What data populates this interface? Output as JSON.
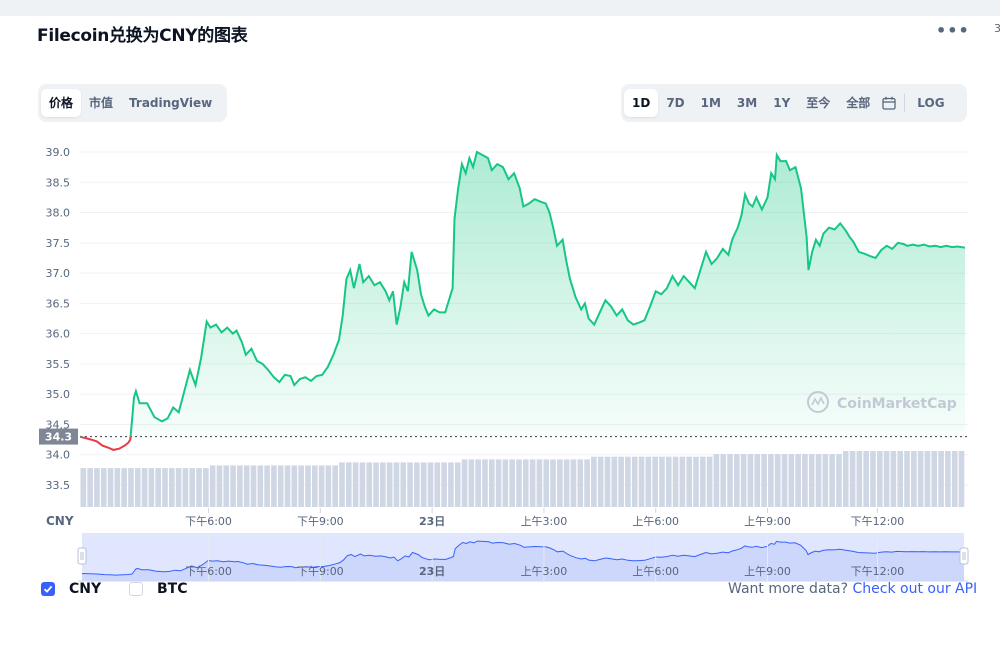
{
  "title": "Filecoin兑换为CNY的图表",
  "edge_mark": "3",
  "menu_icon": "more-horizontal-icon",
  "view_tabs": [
    {
      "label": "价格",
      "active": true
    },
    {
      "label": "市值",
      "active": false
    },
    {
      "label": "TradingView",
      "active": false
    }
  ],
  "range_tabs": [
    {
      "label": "1D",
      "active": true
    },
    {
      "label": "7D",
      "active": false
    },
    {
      "label": "1M",
      "active": false
    },
    {
      "label": "3M",
      "active": false
    },
    {
      "label": "1Y",
      "active": false
    },
    {
      "label": "至今",
      "active": false
    },
    {
      "label": "全部",
      "active": false
    }
  ],
  "calendar_icon": "calendar-icon",
  "log_label": "LOG",
  "watermark": "CoinMarketCap",
  "colors": {
    "up": "#16c784",
    "down": "#ea3943",
    "accent": "#3861fb",
    "volume": "#cfd6e4",
    "navigator": "#e0e6fd"
  },
  "chart_data": {
    "type": "line",
    "currency_label": "CNY",
    "current_price": "34.3",
    "y_ticks": [
      "33.5",
      "34.0",
      "34.5",
      "35.0",
      "35.5",
      "36.0",
      "36.5",
      "37.0",
      "37.5",
      "38.0",
      "38.5",
      "39.0"
    ],
    "ylim": [
      33.1,
      39.2
    ],
    "baseline": 34.3,
    "x_ticks": [
      {
        "label": "下午6:00",
        "t": 3.45,
        "bold": false
      },
      {
        "label": "下午9:00",
        "t": 6.45,
        "bold": false
      },
      {
        "label": "23日",
        "t": 9.45,
        "bold": true
      },
      {
        "label": "上午3:00",
        "t": 12.45,
        "bold": false
      },
      {
        "label": "上午6:00",
        "t": 15.45,
        "bold": false
      },
      {
        "label": "上午9:00",
        "t": 18.45,
        "bold": false
      },
      {
        "label": "下午12:00",
        "t": 21.4,
        "bold": false
      }
    ],
    "x_range": [
      0,
      23.75
    ],
    "series": [
      {
        "points": [
          [
            0,
            34.3
          ],
          [
            0.3,
            34.25
          ],
          [
            0.45,
            34.22
          ],
          [
            0.6,
            34.15
          ],
          [
            0.75,
            34.12
          ],
          [
            0.9,
            34.08
          ],
          [
            1.05,
            34.1
          ],
          [
            1.2,
            34.15
          ],
          [
            1.3,
            34.2
          ],
          [
            1.35,
            34.25
          ],
          [
            1.4,
            34.6
          ],
          [
            1.45,
            34.95
          ],
          [
            1.5,
            35.05
          ],
          [
            1.6,
            34.85
          ],
          [
            1.8,
            34.85
          ],
          [
            2.0,
            34.62
          ],
          [
            2.2,
            34.55
          ],
          [
            2.35,
            34.6
          ],
          [
            2.5,
            34.78
          ],
          [
            2.65,
            34.7
          ],
          [
            2.8,
            35.05
          ],
          [
            2.95,
            35.4
          ],
          [
            3.1,
            35.15
          ],
          [
            3.25,
            35.6
          ],
          [
            3.4,
            36.2
          ],
          [
            3.5,
            36.1
          ],
          [
            3.65,
            36.15
          ],
          [
            3.8,
            36.02
          ],
          [
            3.95,
            36.1
          ],
          [
            4.1,
            36.0
          ],
          [
            4.2,
            36.05
          ],
          [
            4.35,
            35.85
          ],
          [
            4.45,
            35.65
          ],
          [
            4.6,
            35.75
          ],
          [
            4.75,
            35.55
          ],
          [
            4.9,
            35.5
          ],
          [
            5.05,
            35.4
          ],
          [
            5.2,
            35.28
          ],
          [
            5.35,
            35.2
          ],
          [
            5.5,
            35.32
          ],
          [
            5.65,
            35.3
          ],
          [
            5.75,
            35.15
          ],
          [
            5.9,
            35.25
          ],
          [
            6.05,
            35.28
          ],
          [
            6.2,
            35.22
          ],
          [
            6.35,
            35.3
          ],
          [
            6.5,
            35.32
          ],
          [
            6.65,
            35.45
          ],
          [
            6.8,
            35.65
          ],
          [
            6.95,
            35.9
          ],
          [
            7.05,
            36.3
          ],
          [
            7.15,
            36.9
          ],
          [
            7.25,
            37.05
          ],
          [
            7.35,
            36.75
          ],
          [
            7.5,
            37.15
          ],
          [
            7.6,
            36.85
          ],
          [
            7.75,
            36.95
          ],
          [
            7.9,
            36.8
          ],
          [
            8.05,
            36.85
          ],
          [
            8.2,
            36.7
          ],
          [
            8.3,
            36.55
          ],
          [
            8.4,
            36.7
          ],
          [
            8.5,
            36.15
          ],
          [
            8.6,
            36.45
          ],
          [
            8.7,
            36.85
          ],
          [
            8.8,
            36.7
          ],
          [
            8.9,
            37.35
          ],
          [
            9.05,
            37.05
          ],
          [
            9.15,
            36.65
          ],
          [
            9.25,
            36.45
          ],
          [
            9.35,
            36.3
          ],
          [
            9.5,
            36.4
          ],
          [
            9.65,
            36.35
          ],
          [
            9.8,
            36.35
          ],
          [
            9.9,
            36.55
          ],
          [
            10.0,
            36.75
          ],
          [
            10.05,
            37.9
          ],
          [
            10.15,
            38.4
          ],
          [
            10.25,
            38.8
          ],
          [
            10.35,
            38.65
          ],
          [
            10.45,
            38.9
          ],
          [
            10.55,
            38.75
          ],
          [
            10.65,
            39.0
          ],
          [
            10.8,
            38.95
          ],
          [
            10.95,
            38.9
          ],
          [
            11.05,
            38.7
          ],
          [
            11.2,
            38.8
          ],
          [
            11.35,
            38.75
          ],
          [
            11.5,
            38.55
          ],
          [
            11.65,
            38.65
          ],
          [
            11.8,
            38.4
          ],
          [
            11.9,
            38.1
          ],
          [
            12.05,
            38.15
          ],
          [
            12.2,
            38.22
          ],
          [
            12.35,
            38.18
          ],
          [
            12.5,
            38.15
          ],
          [
            12.6,
            38.0
          ],
          [
            12.7,
            37.75
          ],
          [
            12.8,
            37.45
          ],
          [
            12.95,
            37.55
          ],
          [
            13.05,
            37.2
          ],
          [
            13.15,
            36.9
          ],
          [
            13.3,
            36.6
          ],
          [
            13.45,
            36.4
          ],
          [
            13.55,
            36.5
          ],
          [
            13.65,
            36.25
          ],
          [
            13.8,
            36.15
          ],
          [
            13.95,
            36.35
          ],
          [
            14.1,
            36.55
          ],
          [
            14.25,
            36.45
          ],
          [
            14.4,
            36.3
          ],
          [
            14.55,
            36.4
          ],
          [
            14.7,
            36.22
          ],
          [
            14.85,
            36.15
          ],
          [
            15.0,
            36.18
          ],
          [
            15.15,
            36.22
          ],
          [
            15.3,
            36.45
          ],
          [
            15.45,
            36.7
          ],
          [
            15.6,
            36.65
          ],
          [
            15.75,
            36.75
          ],
          [
            15.9,
            36.95
          ],
          [
            16.05,
            36.8
          ],
          [
            16.2,
            36.95
          ],
          [
            16.35,
            36.85
          ],
          [
            16.5,
            36.75
          ],
          [
            16.65,
            37.05
          ],
          [
            16.8,
            37.35
          ],
          [
            16.95,
            37.15
          ],
          [
            17.1,
            37.25
          ],
          [
            17.25,
            37.4
          ],
          [
            17.4,
            37.3
          ],
          [
            17.5,
            37.55
          ],
          [
            17.65,
            37.75
          ],
          [
            17.75,
            37.95
          ],
          [
            17.85,
            38.3
          ],
          [
            17.95,
            38.15
          ],
          [
            18.05,
            38.1
          ],
          [
            18.15,
            38.25
          ],
          [
            18.3,
            38.05
          ],
          [
            18.45,
            38.25
          ],
          [
            18.55,
            38.65
          ],
          [
            18.65,
            38.55
          ],
          [
            18.7,
            38.95
          ],
          [
            18.8,
            38.85
          ],
          [
            18.95,
            38.85
          ],
          [
            19.05,
            38.7
          ],
          [
            19.2,
            38.75
          ],
          [
            19.35,
            38.4
          ],
          [
            19.5,
            37.6
          ],
          [
            19.55,
            37.05
          ],
          [
            19.65,
            37.35
          ],
          [
            19.75,
            37.55
          ],
          [
            19.85,
            37.45
          ],
          [
            19.95,
            37.65
          ],
          [
            20.1,
            37.75
          ],
          [
            20.25,
            37.72
          ],
          [
            20.4,
            37.82
          ],
          [
            20.55,
            37.7
          ],
          [
            20.65,
            37.6
          ],
          [
            20.75,
            37.52
          ],
          [
            20.9,
            37.35
          ],
          [
            21.05,
            37.32
          ],
          [
            21.2,
            37.28
          ],
          [
            21.35,
            37.25
          ],
          [
            21.5,
            37.38
          ],
          [
            21.65,
            37.45
          ],
          [
            21.8,
            37.4
          ],
          [
            21.95,
            37.5
          ],
          [
            22.1,
            37.48
          ],
          [
            22.2,
            37.45
          ],
          [
            22.35,
            37.47
          ],
          [
            22.5,
            37.45
          ],
          [
            22.65,
            37.47
          ],
          [
            22.8,
            37.44
          ],
          [
            22.95,
            37.45
          ],
          [
            23.1,
            37.43
          ],
          [
            23.25,
            37.45
          ],
          [
            23.4,
            37.43
          ],
          [
            23.55,
            37.44
          ],
          [
            23.75,
            37.42
          ]
        ]
      }
    ],
    "volume_series": [
      {
        "values": [
          0.55,
          0.62,
          0.7,
          0.78,
          0.85,
          0.92,
          1.0
        ]
      }
    ]
  },
  "legend": [
    {
      "label": "CNY",
      "checked": true
    },
    {
      "label": "BTC",
      "checked": false
    }
  ],
  "footer": {
    "text": "Want more data?",
    "link": "Check out our API"
  }
}
